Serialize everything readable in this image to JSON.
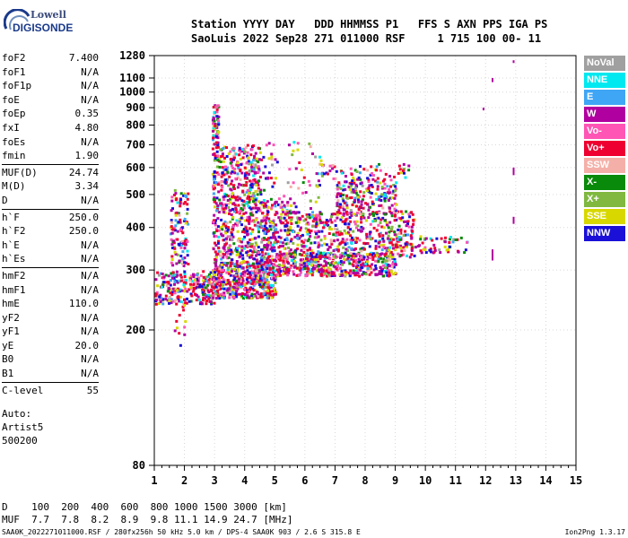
{
  "logo": {
    "brand": "Lowell",
    "product": "DIGISONDE"
  },
  "header": {
    "line1": "Station YYYY DAY   DDD HHMMSS P1   FFS S AXN PPS IGA PS",
    "line2": "SaoLuis 2022 Sep28 271 011000 RSF     1 715 100 00- 11"
  },
  "params": [
    {
      "k": "foF2",
      "v": "7.400"
    },
    {
      "k": "foF1",
      "v": "N/A"
    },
    {
      "k": "foF1p",
      "v": "N/A"
    },
    {
      "k": "foE",
      "v": "N/A"
    },
    {
      "k": "foEp",
      "v": "0.35"
    },
    {
      "k": "fxI",
      "v": "4.80"
    },
    {
      "k": "foEs",
      "v": "N/A"
    },
    {
      "k": "fmin",
      "v": "1.90"
    },
    {
      "sep": true
    },
    {
      "k": "MUF(D)",
      "v": "24.74"
    },
    {
      "k": "M(D)",
      "v": "3.34"
    },
    {
      "k": "D",
      "v": "N/A"
    },
    {
      "sep": true
    },
    {
      "k": "h`F",
      "v": "250.0"
    },
    {
      "k": "h`F2",
      "v": "250.0"
    },
    {
      "k": "h`E",
      "v": "N/A"
    },
    {
      "k": "h`Es",
      "v": "N/A"
    },
    {
      "sep": true
    },
    {
      "k": "hmF2",
      "v": "N/A"
    },
    {
      "k": "hmF1",
      "v": "N/A"
    },
    {
      "k": "hmE",
      "v": "110.0"
    },
    {
      "k": "yF2",
      "v": "N/A"
    },
    {
      "k": "yF1",
      "v": "N/A"
    },
    {
      "k": "yE",
      "v": "20.0"
    },
    {
      "k": "B0",
      "v": "N/A"
    },
    {
      "k": "B1",
      "v": "N/A"
    },
    {
      "sep": true
    },
    {
      "k": "C-level",
      "v": "55"
    }
  ],
  "auto": {
    "line1": "Auto:",
    "line2": "Artist5",
    "line3": "500200"
  },
  "legend": [
    {
      "label": "NoVal",
      "color": "#a0a0a0"
    },
    {
      "label": "NNE",
      "color": "#00e8f0"
    },
    {
      "label": "E",
      "color": "#3fa6f5"
    },
    {
      "label": "W",
      "color": "#b0009f"
    },
    {
      "label": "Vo-",
      "color": "#ff55b5"
    },
    {
      "label": "Vo+",
      "color": "#ee0030"
    },
    {
      "label": "SSW",
      "color": "#f4b0a8"
    },
    {
      "label": "X-",
      "color": "#0a8a0a"
    },
    {
      "label": "X+",
      "color": "#80b840"
    },
    {
      "label": "SSE",
      "color": "#d8d800"
    },
    {
      "label": "NNW",
      "color": "#1a10d8"
    }
  ],
  "muf_table": {
    "line1": "D    100  200  400  600  800 1000 1500 3000 [km]",
    "line2": "MUF  7.7  7.8  8.2  8.9  9.8 11.1 14.9 24.7 [MHz]"
  },
  "footer": {
    "left": "SAA0K_2022271011000.RSF / 280fx256h 50 kHz 5.0 km / DPS-4 SAA0K 903 / 2.6 S 315.8 E",
    "right": "Ion2Png 1.3.17"
  },
  "chart_data": {
    "type": "scatter",
    "xlim": [
      1,
      15
    ],
    "ylim": [
      80,
      1280
    ],
    "xticks": [
      1,
      2,
      3,
      4,
      5,
      6,
      7,
      8,
      9,
      10,
      11,
      12,
      13,
      14,
      15
    ],
    "yticks": [
      80,
      200,
      300,
      400,
      500,
      600,
      700,
      800,
      900,
      1000,
      1100,
      1280
    ],
    "yscale": "log",
    "grid": true,
    "legend_position": "right",
    "trace_colors": {
      "o": "#ee0030",
      "x": "#0a8a0a"
    }
  }
}
